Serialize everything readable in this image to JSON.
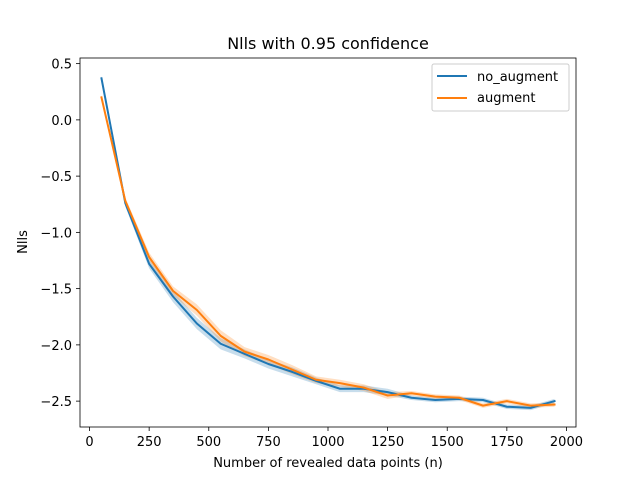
{
  "chart_data": {
    "type": "line",
    "title": "Nlls with 0.95 confidence",
    "xlabel": "Number of revealed data points (n)",
    "ylabel": "Nlls",
    "xlim": [
      -40,
      2040
    ],
    "ylim": [
      -2.73,
      0.55
    ],
    "xticks": [
      0,
      250,
      500,
      750,
      1000,
      1250,
      1500,
      1750,
      2000
    ],
    "xtick_labels": [
      "0",
      "250",
      "500",
      "750",
      "1000",
      "1250",
      "1500",
      "1750",
      "2000"
    ],
    "yticks": [
      0.5,
      0.0,
      -0.5,
      -1.0,
      -1.5,
      -2.0,
      -2.5
    ],
    "ytick_labels": [
      "0.5",
      "0.0",
      "−0.5",
      "−1.0",
      "−1.5",
      "−2.0",
      "−2.5"
    ],
    "legend_position": "upper right",
    "grid": false,
    "x": [
      50,
      150,
      250,
      350,
      450,
      550,
      650,
      750,
      850,
      950,
      1050,
      1150,
      1250,
      1350,
      1450,
      1550,
      1650,
      1750,
      1850,
      1950
    ],
    "series": [
      {
        "name": "no_augment",
        "color": "#1f77b4",
        "values": [
          0.37,
          -0.74,
          -1.28,
          -1.57,
          -1.81,
          -1.99,
          -2.08,
          -2.17,
          -2.24,
          -2.32,
          -2.39,
          -2.39,
          -2.42,
          -2.47,
          -2.49,
          -2.48,
          -2.49,
          -2.55,
          -2.56,
          -2.5
        ],
        "ci_half_width": [
          0.02,
          0.03,
          0.04,
          0.05,
          0.05,
          0.05,
          0.04,
          0.04,
          0.04,
          0.03,
          0.03,
          0.03,
          0.03,
          0.02,
          0.02,
          0.02,
          0.02,
          0.02,
          0.02,
          0.02
        ]
      },
      {
        "name": "augment",
        "color": "#ff7f0e",
        "values": [
          0.2,
          -0.72,
          -1.22,
          -1.52,
          -1.69,
          -1.92,
          -2.06,
          -2.13,
          -2.22,
          -2.31,
          -2.34,
          -2.38,
          -2.45,
          -2.43,
          -2.46,
          -2.47,
          -2.54,
          -2.5,
          -2.54,
          -2.53
        ],
        "ci_half_width": [
          0.02,
          0.03,
          0.04,
          0.04,
          0.05,
          0.05,
          0.04,
          0.04,
          0.04,
          0.03,
          0.03,
          0.03,
          0.03,
          0.02,
          0.02,
          0.02,
          0.02,
          0.02,
          0.02,
          0.02
        ]
      }
    ]
  }
}
